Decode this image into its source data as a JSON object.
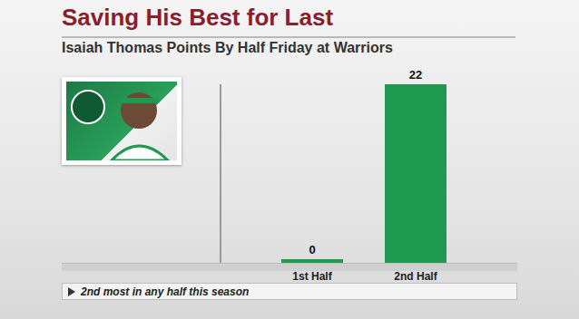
{
  "chart_data": {
    "type": "bar",
    "title": "Saving His Best for Last",
    "subtitle": "Isaiah Thomas Points By Half Friday at Warriors",
    "categories": [
      "1st Half",
      "2nd Half"
    ],
    "values": [
      0,
      22
    ],
    "color": "#1e9a50",
    "ylim": [
      0,
      22
    ],
    "data_labels": true,
    "tick_labels": "x",
    "grid": false,
    "annotations": [
      "2nd most in any half this season"
    ]
  }
}
